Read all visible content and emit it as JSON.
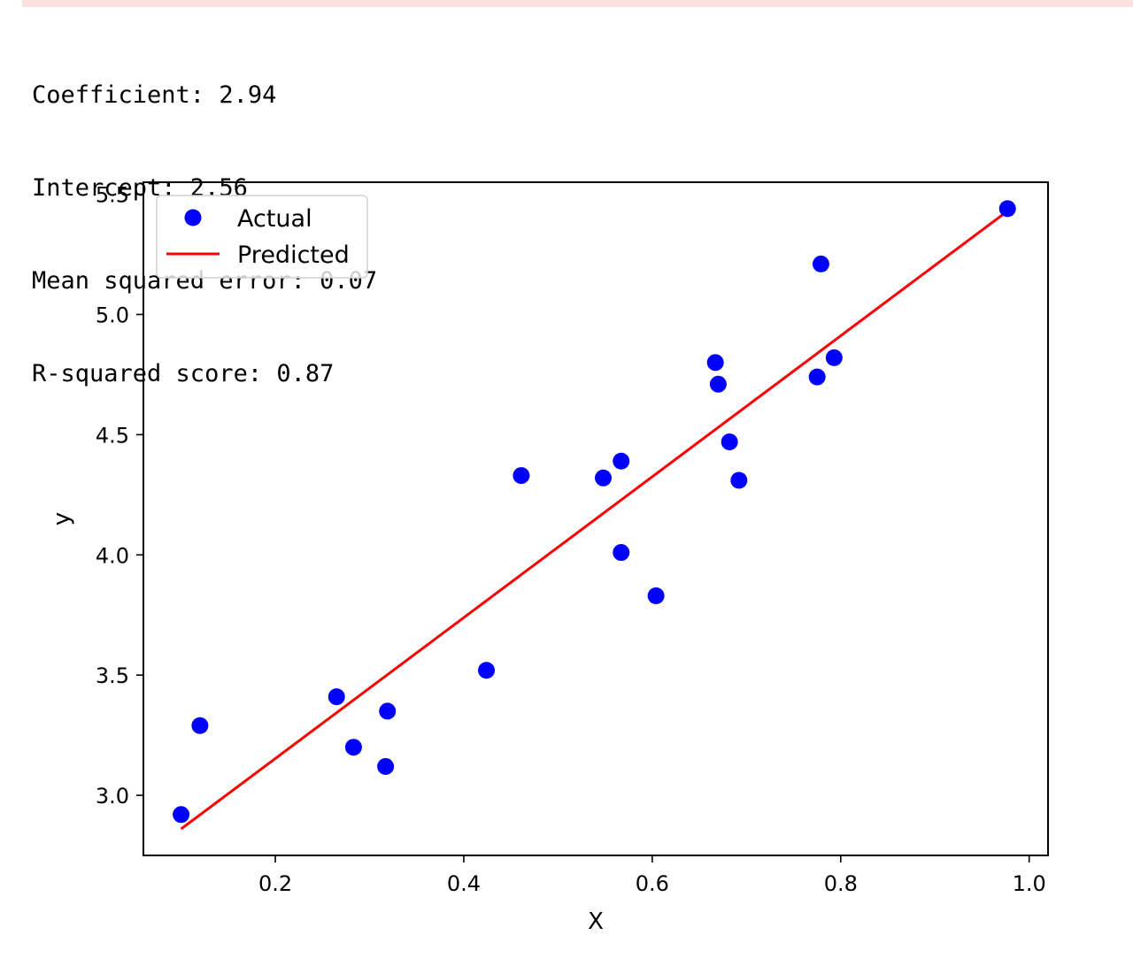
{
  "output": {
    "lines": [
      "Coefficient: 2.94",
      "Intercept: 2.56",
      "Mean squared error: 0.07",
      "R-squared score: 0.87"
    ]
  },
  "colors": {
    "actual": "#0000ff",
    "predicted": "#ff0000",
    "topbar": "#fde1e1"
  },
  "chart_data": {
    "type": "scatter",
    "title": "",
    "xlabel": "X",
    "ylabel": "y",
    "xlim": [
      0.06,
      1.02
    ],
    "ylim": [
      2.75,
      5.55
    ],
    "xticks": [
      0.2,
      0.4,
      0.6,
      0.8,
      1.0
    ],
    "xtick_labels": [
      "0.2",
      "0.4",
      "0.6",
      "0.8",
      "1.0"
    ],
    "yticks": [
      3.0,
      3.5,
      4.0,
      4.5,
      5.0,
      5.5
    ],
    "ytick_labels": [
      "3.0",
      "3.5",
      "4.0",
      "4.5",
      "5.0",
      "5.5"
    ],
    "legend_position": "upper-left",
    "grid": false,
    "series": [
      {
        "name": "Actual",
        "kind": "scatter",
        "x": [
          0.1,
          0.12,
          0.265,
          0.283,
          0.317,
          0.319,
          0.424,
          0.461,
          0.548,
          0.567,
          0.567,
          0.604,
          0.667,
          0.67,
          0.682,
          0.692,
          0.775,
          0.779,
          0.793,
          0.977
        ],
        "y": [
          2.92,
          3.29,
          3.41,
          3.2,
          3.12,
          3.35,
          3.52,
          4.33,
          4.32,
          4.39,
          4.01,
          3.83,
          4.8,
          4.71,
          4.47,
          4.31,
          4.74,
          5.21,
          4.82,
          5.44
        ]
      },
      {
        "name": "Predicted",
        "kind": "line",
        "x": [
          0.1,
          0.977
        ],
        "y": [
          2.86,
          5.43
        ]
      }
    ]
  }
}
